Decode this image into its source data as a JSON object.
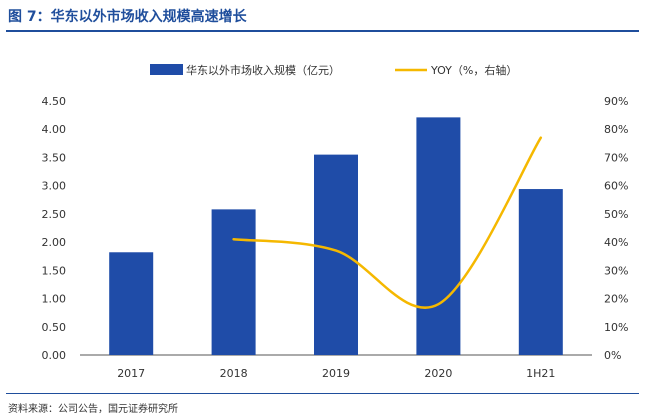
{
  "figure_title": "图 7：华东以外市场收入规模高速增长",
  "source_note": "资料来源：公司公告，国元证券研究所",
  "colors": {
    "title": "#1f4e9c",
    "bar": "#1f4ca8",
    "line": "#f5b800"
  },
  "chart_data": {
    "type": "bar",
    "categories": [
      "2017",
      "2018",
      "2019",
      "2020",
      "1H21"
    ],
    "series": [
      {
        "name": "华东以外市场收入规模（亿元）",
        "type": "bar",
        "axis": "left",
        "values": [
          1.82,
          2.58,
          3.55,
          4.21,
          2.94
        ]
      },
      {
        "name": "YOY（%，右轴）",
        "type": "line",
        "axis": "right",
        "values": [
          null,
          41,
          37,
          18,
          77
        ]
      }
    ],
    "y_left": {
      "min": 0,
      "max": 4.5,
      "ticks": [
        "0.00",
        "0.50",
        "1.00",
        "1.50",
        "2.00",
        "2.50",
        "3.00",
        "3.50",
        "4.00",
        "4.50"
      ]
    },
    "y_right": {
      "min": 0,
      "max": 90,
      "ticks": [
        "0%",
        "10%",
        "20%",
        "30%",
        "40%",
        "50%",
        "60%",
        "70%",
        "80%",
        "90%"
      ]
    },
    "grid": false,
    "legend_position": "top-center"
  }
}
